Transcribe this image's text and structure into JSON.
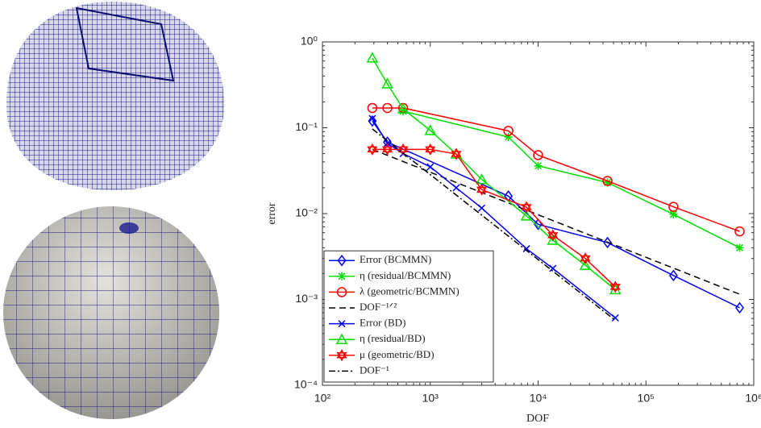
{
  "chart_data": {
    "type": "line",
    "x_label": "DOF",
    "y_label": "error",
    "xscale": "log",
    "yscale": "log",
    "xlim": [
      100,
      1000000
    ],
    "ylim": [
      0.0001,
      1
    ],
    "xticks": [
      {
        "value": 100,
        "label": "10²"
      },
      {
        "value": 1000,
        "label": "10³"
      },
      {
        "value": 10000,
        "label": "10⁴"
      },
      {
        "value": 100000,
        "label": "10⁵"
      },
      {
        "value": 1000000,
        "label": "10⁶"
      }
    ],
    "yticks": [
      {
        "value": 0.0001,
        "label": "10⁻⁴"
      },
      {
        "value": 0.001,
        "label": "10⁻³"
      },
      {
        "value": 0.01,
        "label": "10⁻²"
      },
      {
        "value": 0.1,
        "label": "10⁻¹"
      },
      {
        "value": 1,
        "label": "10⁰"
      }
    ],
    "legend": "lower-left",
    "series": [
      {
        "name": "Error (BCMMN)",
        "color": "#0000ff",
        "marker": "diamond",
        "dash": "solid",
        "x": [
          290,
          400,
          5300,
          10000,
          44000,
          180000,
          740000
        ],
        "values": [
          0.12,
          0.068,
          0.016,
          0.0075,
          0.0046,
          0.0019,
          0.0008
        ]
      },
      {
        "name": "η (residual/BCMMN)",
        "color": "#00e000",
        "marker": "star",
        "dash": "solid",
        "x": [
          560,
          5300,
          10000,
          44000,
          180000,
          740000
        ],
        "values": [
          0.156,
          0.078,
          0.036,
          0.023,
          0.0098,
          0.004
        ]
      },
      {
        "name": "λ (geometric/BCMMN)",
        "color": "#ff0000",
        "marker": "circle",
        "dash": "solid",
        "x": [
          290,
          400,
          560,
          5300,
          10000,
          44000,
          180000,
          740000
        ],
        "values": [
          0.17,
          0.17,
          0.17,
          0.092,
          0.048,
          0.024,
          0.012,
          0.0062
        ]
      },
      {
        "name": "DOF⁻¹ᐟ²",
        "color": "#000000",
        "marker": "none",
        "dash": "dashed",
        "x": [
          290,
          740000
        ],
        "values": [
          0.056,
          0.00115
        ]
      },
      {
        "name": "Error (BD)",
        "color": "#0000ff",
        "marker": "x",
        "dash": "solid",
        "x": [
          290,
          400,
          560,
          1000,
          1740,
          3000,
          7800,
          13700,
          52000
        ],
        "values": [
          0.128,
          0.066,
          0.05,
          0.035,
          0.02,
          0.0116,
          0.0039,
          0.0023,
          0.00061
        ]
      },
      {
        "name": "η (residual/BD)",
        "color": "#00e000",
        "marker": "triangle",
        "dash": "solid",
        "x": [
          290,
          400,
          560,
          1000,
          1740,
          3000,
          7800,
          13700,
          27400,
          52000
        ],
        "values": [
          0.65,
          0.325,
          0.166,
          0.093,
          0.0495,
          0.025,
          0.0094,
          0.0049,
          0.0025,
          0.0013
        ]
      },
      {
        "name": "μ (geometric/BD)",
        "color": "#ff0000",
        "marker": "hexstar",
        "dash": "solid",
        "x": [
          290,
          400,
          560,
          1000,
          1740,
          3000,
          7800,
          13700,
          27400,
          52000
        ],
        "values": [
          0.056,
          0.056,
          0.056,
          0.056,
          0.0495,
          0.019,
          0.0119,
          0.0056,
          0.003,
          0.0014
        ]
      },
      {
        "name": "DOF⁻¹",
        "color": "#000000",
        "marker": "none",
        "dash": "dashdot",
        "x": [
          290,
          52000
        ],
        "values": [
          0.097,
          0.00057
        ]
      }
    ]
  }
}
